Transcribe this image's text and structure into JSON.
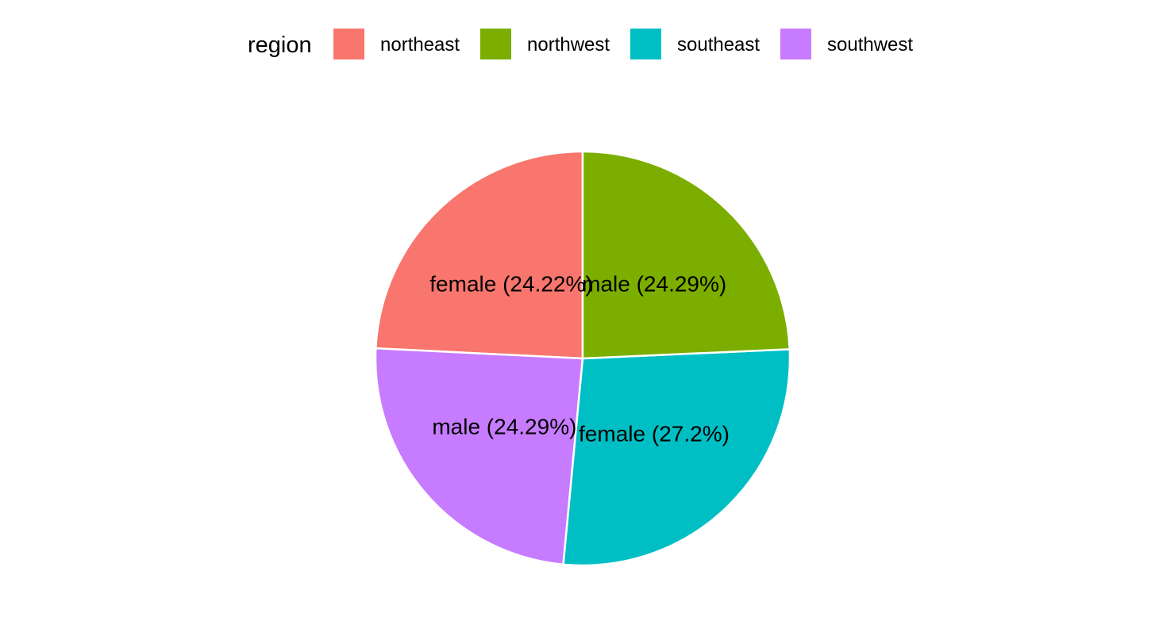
{
  "chart_data": {
    "type": "pie",
    "legend": {
      "title": "region",
      "position": "top"
    },
    "slices": [
      {
        "region": "northeast",
        "label": "female (24.22%)",
        "value": 24.22,
        "color": "#F8766D"
      },
      {
        "region": "southwest",
        "label": "male (24.29%)",
        "value": 24.29,
        "color": "#C77CFF"
      },
      {
        "region": "southeast",
        "label": "female (27.2%)",
        "value": 27.2,
        "color": "#00BFC4"
      },
      {
        "region": "northwest",
        "label": "male (24.29%)",
        "value": 24.29,
        "color": "#7CAE00"
      }
    ],
    "legend_entries": [
      {
        "label": "northeast",
        "color": "#F8766D"
      },
      {
        "label": "northwest",
        "color": "#7CAE00"
      },
      {
        "label": "southeast",
        "color": "#00BFC4"
      },
      {
        "label": "southwest",
        "color": "#C77CFF"
      }
    ]
  }
}
